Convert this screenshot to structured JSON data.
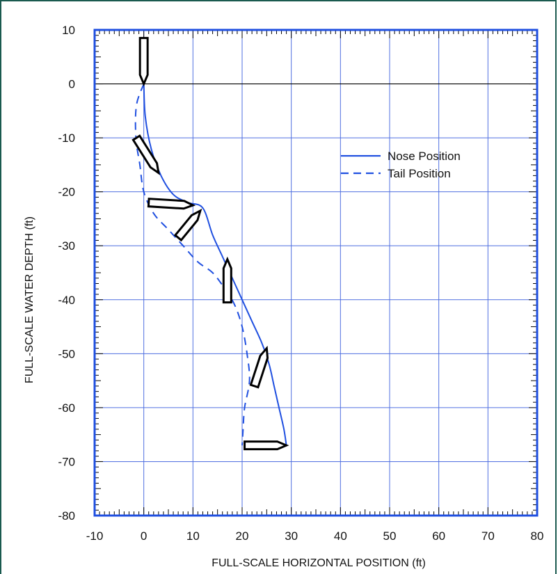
{
  "chart_data": {
    "type": "line",
    "xlabel": "FULL-SCALE HORIZONTAL POSITION (ft)",
    "ylabel": "FULL-SCALE WATER DEPTH (ft)",
    "xlim": [
      -10,
      80
    ],
    "ylim": [
      -80,
      10
    ],
    "xticks": [
      "-10",
      "0",
      "10",
      "20",
      "30",
      "40",
      "50",
      "60",
      "70",
      "80"
    ],
    "yticks": [
      "10",
      "0",
      "-10",
      "-20",
      "-30",
      "-40",
      "-50",
      "-60",
      "-70",
      "-80"
    ],
    "grid": true,
    "legend_position": "upper-middle-right",
    "colors": {
      "series": "#1f4fe0",
      "grid": "#4f6fe0",
      "frame": "#1a5a4f",
      "body_outline": "#000000"
    },
    "series": [
      {
        "name": "Nose Position",
        "style": "solid",
        "x": [
          0,
          0.3,
          1.5,
          3.5,
          6,
          9,
          12,
          14,
          16,
          18,
          20,
          22,
          24,
          25.5,
          26.5,
          27.5,
          28.5,
          29
        ],
        "y": [
          0,
          -6,
          -12,
          -17,
          -20.5,
          -22,
          -23,
          -28,
          -32,
          -36,
          -40,
          -44,
          -48,
          -52,
          -56,
          -60,
          -64,
          -67
        ]
      },
      {
        "name": "Tail Position",
        "style": "dashed",
        "x": [
          0,
          -1.5,
          -1.6,
          -0.8,
          0,
          2,
          5,
          8,
          11,
          14,
          16.5,
          18.5,
          20,
          21,
          21.5,
          20.5,
          20.2,
          20
        ],
        "y": [
          0,
          -4,
          -10,
          -15,
          -20,
          -24,
          -27,
          -30,
          -33,
          -35,
          -38,
          -41,
          -45,
          -50,
          -55,
          -60,
          -64,
          -67
        ]
      }
    ],
    "body_positions": [
      {
        "nose": [
          0,
          0
        ],
        "tail": [
          0,
          8.5
        ]
      },
      {
        "nose": [
          3,
          -16.5
        ],
        "tail": [
          -1.5,
          -10
        ]
      },
      {
        "nose": [
          10,
          -22.5
        ],
        "tail": [
          1,
          -22
        ]
      },
      {
        "nose": [
          11.5,
          -23.5
        ],
        "tail": [
          7,
          -28.5
        ]
      },
      {
        "nose": [
          17,
          -32.5
        ],
        "tail": [
          17,
          -40.5
        ]
      },
      {
        "nose": [
          25,
          -49
        ],
        "tail": [
          22.5,
          -56
        ]
      },
      {
        "nose": [
          29,
          -67
        ],
        "tail": [
          20.5,
          -67
        ]
      }
    ]
  }
}
